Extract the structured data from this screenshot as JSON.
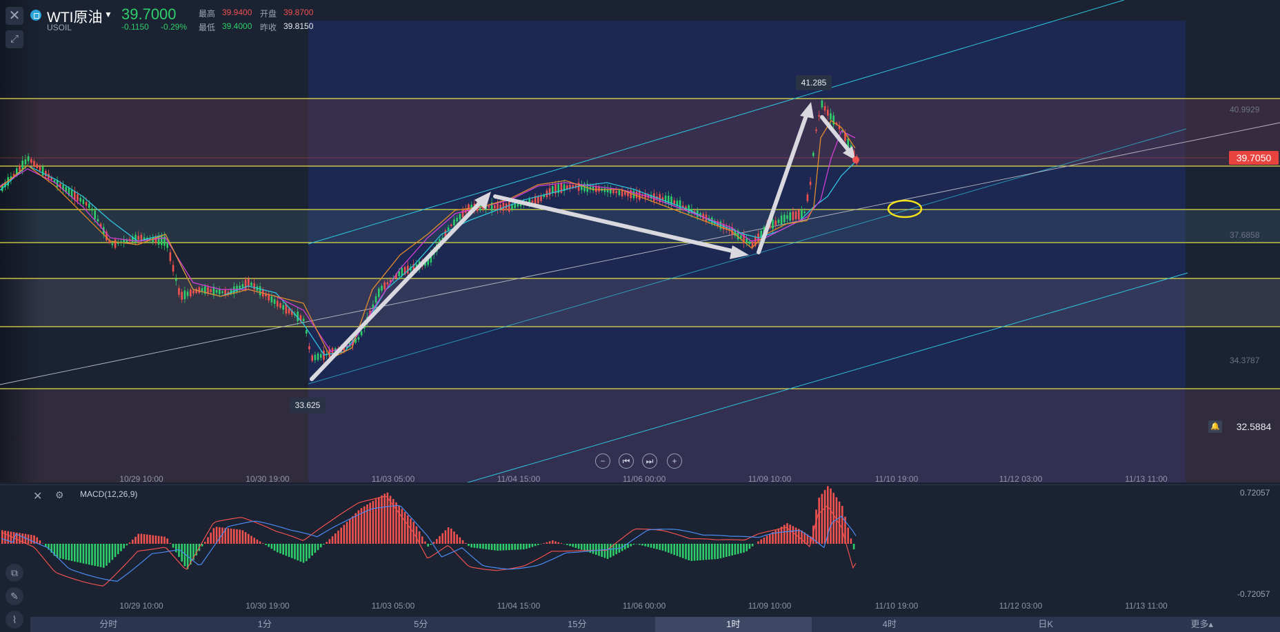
{
  "header": {
    "symbol_name": "WTI原油",
    "symbol_code": "USOIL",
    "price": "39.7000",
    "change": "-0.1150",
    "change_pct": "-0.29%",
    "stats": {
      "high_label": "最高",
      "high": "39.9400",
      "open_label": "开盘",
      "open": "39.8700",
      "low_label": "最低",
      "low": "39.4000",
      "prev_close_label": "昨收",
      "prev_close": "39.8150"
    }
  },
  "chart": {
    "last_price_label": "39.7050",
    "alert_price": "32.5884",
    "axis_labels": [
      "40.9929",
      "37.6858",
      "34.3787"
    ],
    "high_marker": "41.285",
    "low_marker": "33.625",
    "time_labels": [
      "10/29 10:00",
      "10/30 19:00",
      "11/03 05:00",
      "11/04 15:00",
      "11/06 00:00",
      "11/09 10:00",
      "11/10 19:00",
      "11/12 03:00",
      "11/13 11:00"
    ]
  },
  "macd": {
    "label": "MACD(12,26,9)",
    "top_value": "0.72057",
    "bottom_value": "-0.72057",
    "time_labels": [
      "10/29 10:00",
      "10/30 19:00",
      "11/03 05:00",
      "11/04 15:00",
      "11/06 00:00",
      "11/09 10:00",
      "11/10 19:00",
      "11/12 03:00",
      "11/13 11:00"
    ]
  },
  "nav_controls": [
    "−",
    "⏮",
    "⏭",
    "+"
  ],
  "timeframes": [
    "分时",
    "1分",
    "5分",
    "15分",
    "1时",
    "4时",
    "日K",
    "更多▴"
  ],
  "active_timeframe": "1时",
  "colors": {
    "up": "#f0524f",
    "down": "#2ecf6a",
    "fib_line": "#e6e04a",
    "channel": "#2fc6e0",
    "ellipse": "#f2e11b"
  }
}
